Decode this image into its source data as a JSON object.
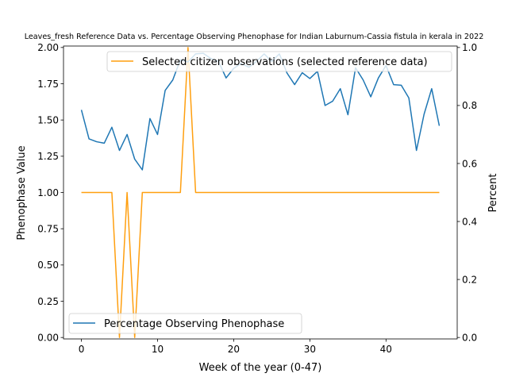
{
  "chart_data": {
    "type": "line",
    "title": "Leaves_fresh Reference Data vs. Percentage Observing Phenophase for Indian Laburnum-Cassia fistula in kerala in 2022",
    "xlabel": "Week of the year (0-47)",
    "ylabel_left": "Phenophase Value",
    "ylabel_right": "Percent",
    "xlim": [
      -2.35,
      49.35
    ],
    "ylim_left": [
      -0.01,
      2.01
    ],
    "ylim_right": [
      -0.005,
      1.005
    ],
    "x_ticks": [
      0,
      10,
      20,
      30,
      40
    ],
    "y_ticks_left": [
      "0.00",
      "0.25",
      "0.50",
      "0.75",
      "1.00",
      "1.25",
      "1.50",
      "1.75",
      "2.00"
    ],
    "y_ticks_right": [
      "0.0",
      "0.2",
      "0.4",
      "0.6",
      "0.8",
      "1.0"
    ],
    "legends": [
      {
        "text": "Selected citizen observations (selected reference data)",
        "location": "top-right"
      },
      {
        "text": "Percentage Observing Phenophase",
        "location": "bottom-left"
      }
    ],
    "colors": {
      "reference": "#ff9f0f",
      "percentage": "#1f77b4"
    },
    "series": [
      {
        "name": "Selected citizen observations (selected reference data)",
        "axis": "left",
        "x": [
          0,
          1,
          2,
          3,
          4,
          5,
          6,
          7,
          8,
          9,
          10,
          11,
          12,
          13,
          14,
          15,
          16,
          17,
          18,
          19,
          20,
          21,
          22,
          23,
          24,
          25,
          26,
          27,
          28,
          29,
          30,
          31,
          32,
          33,
          34,
          35,
          36,
          37,
          38,
          39,
          40,
          41,
          42,
          43,
          44,
          45,
          46,
          47
        ],
        "values": [
          1,
          1,
          1,
          1,
          1,
          0,
          1,
          0,
          1,
          1,
          1,
          1,
          1,
          1,
          2,
          1,
          1,
          1,
          1,
          1,
          1,
          1,
          1,
          1,
          1,
          1,
          1,
          1,
          1,
          1,
          1,
          1,
          1,
          1,
          1,
          1,
          1,
          1,
          1,
          1,
          1,
          1,
          1,
          1,
          1,
          1,
          1,
          1
        ]
      },
      {
        "name": "Percentage Observing Phenophase",
        "axis": "right",
        "x": [
          0,
          1,
          2,
          3,
          4,
          5,
          6,
          7,
          8,
          9,
          10,
          11,
          12,
          13,
          14,
          15,
          16,
          17,
          18,
          19,
          20,
          21,
          22,
          23,
          24,
          25,
          26,
          27,
          28,
          29,
          30,
          31,
          32,
          33,
          34,
          35,
          36,
          37,
          38,
          39,
          40,
          41,
          42,
          43,
          44,
          45,
          46,
          47
        ],
        "values": [
          0.785,
          0.685,
          0.675,
          0.67,
          0.725,
          0.645,
          0.7,
          0.615,
          0.578,
          0.755,
          0.7,
          0.852,
          0.888,
          0.958,
          0.95,
          0.978,
          0.98,
          0.962,
          0.952,
          0.895,
          0.928,
          0.945,
          0.932,
          0.952,
          0.978,
          0.952,
          0.978,
          0.912,
          0.872,
          0.913,
          0.893,
          0.918,
          0.8,
          0.815,
          0.858,
          0.768,
          0.93,
          0.888,
          0.83,
          0.895,
          0.938,
          0.872,
          0.87,
          0.826,
          0.645,
          0.77,
          0.858,
          0.73
        ]
      }
    ]
  }
}
